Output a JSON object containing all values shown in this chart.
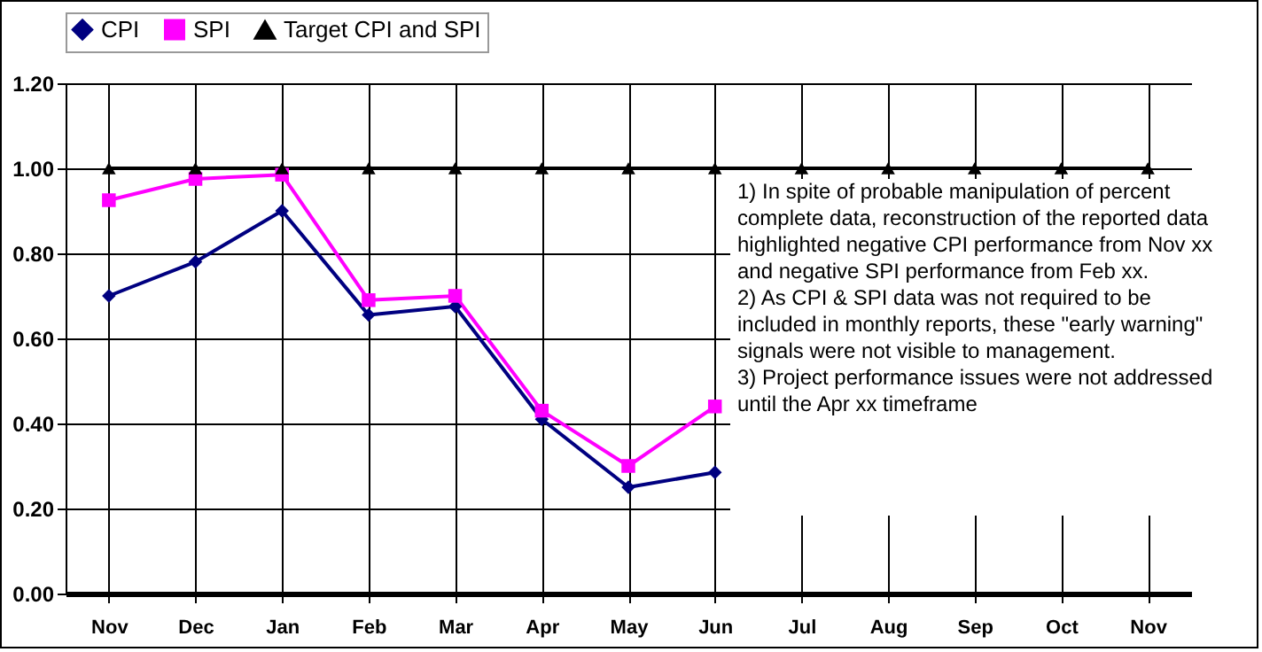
{
  "chart_data": {
    "type": "line",
    "categories": [
      "Nov",
      "Dec",
      "Jan",
      "Feb",
      "Mar",
      "Apr",
      "May",
      "Jun",
      "Jul",
      "Aug",
      "Sep",
      "Oct",
      "Nov"
    ],
    "series": [
      {
        "name": "CPI",
        "color": "#000080",
        "marker": "diamond",
        "values": [
          0.7,
          0.78,
          0.9,
          0.655,
          0.675,
          0.41,
          0.25,
          0.285,
          null,
          null,
          null,
          null,
          null
        ]
      },
      {
        "name": "SPI",
        "color": "#ff00ff",
        "marker": "square",
        "values": [
          0.925,
          0.975,
          0.985,
          0.69,
          0.7,
          0.43,
          0.3,
          0.44,
          null,
          null,
          null,
          null,
          null
        ]
      },
      {
        "name": "Target CPI and SPI",
        "color": "#000000",
        "marker": "triangle",
        "values": [
          1,
          1,
          1,
          1,
          1,
          1,
          1,
          1,
          1,
          1,
          1,
          1,
          1
        ]
      }
    ],
    "ylim": [
      0,
      1.2
    ],
    "yticks": [
      {
        "value": 0,
        "label": "0.00"
      },
      {
        "value": 0.2,
        "label": "0.20"
      },
      {
        "value": 0.4,
        "label": "0.40"
      },
      {
        "value": 0.6,
        "label": "0.60"
      },
      {
        "value": 0.8,
        "label": "0.80"
      },
      {
        "value": 1,
        "label": "1.00"
      },
      {
        "value": 1.2,
        "label": "1.20"
      }
    ],
    "grid": true,
    "legend": "top",
    "line_style": "solid",
    "annotations": [
      "1) In spite of probable manipulation of percent complete data, reconstruction of the reported data highlighted negative CPI performance from Nov xx and negative SPI performance from Feb xx.",
      "2) As CPI & SPI data was not required to be included in monthly reports, these \"early warning\" signals were not visible to management.",
      "3) Project performance issues were not addressed until the Apr xx timeframe"
    ]
  }
}
